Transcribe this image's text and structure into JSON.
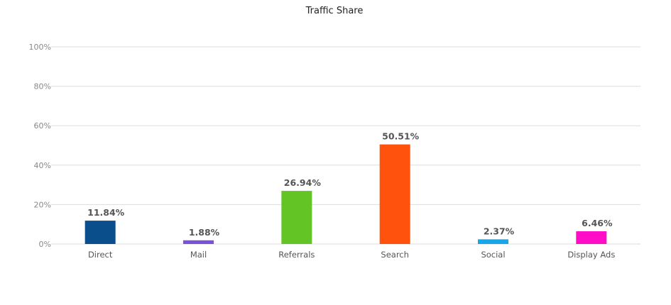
{
  "chart_data": {
    "type": "bar",
    "title": "Traffic Share",
    "xlabel": "",
    "ylabel": "",
    "categories": [
      "Direct",
      "Mail",
      "Referrals",
      "Search",
      "Social",
      "Display Ads"
    ],
    "values": [
      11.84,
      1.88,
      26.94,
      50.51,
      2.37,
      6.46
    ],
    "data_labels": [
      "11.84%",
      "1.88%",
      "26.94%",
      "50.51%",
      "2.37%",
      "6.46%"
    ],
    "colors": [
      "#0a4f8c",
      "#7a52d6",
      "#62c425",
      "#ff520d",
      "#17a6ea",
      "#ff0dc7"
    ],
    "ylim": [
      0,
      100
    ],
    "yticks": [
      0,
      20,
      40,
      60,
      80,
      100
    ],
    "ytick_labels": [
      "0%",
      "20%",
      "40%",
      "60%",
      "80%",
      "100%"
    ],
    "grid": true,
    "legend": "none"
  }
}
